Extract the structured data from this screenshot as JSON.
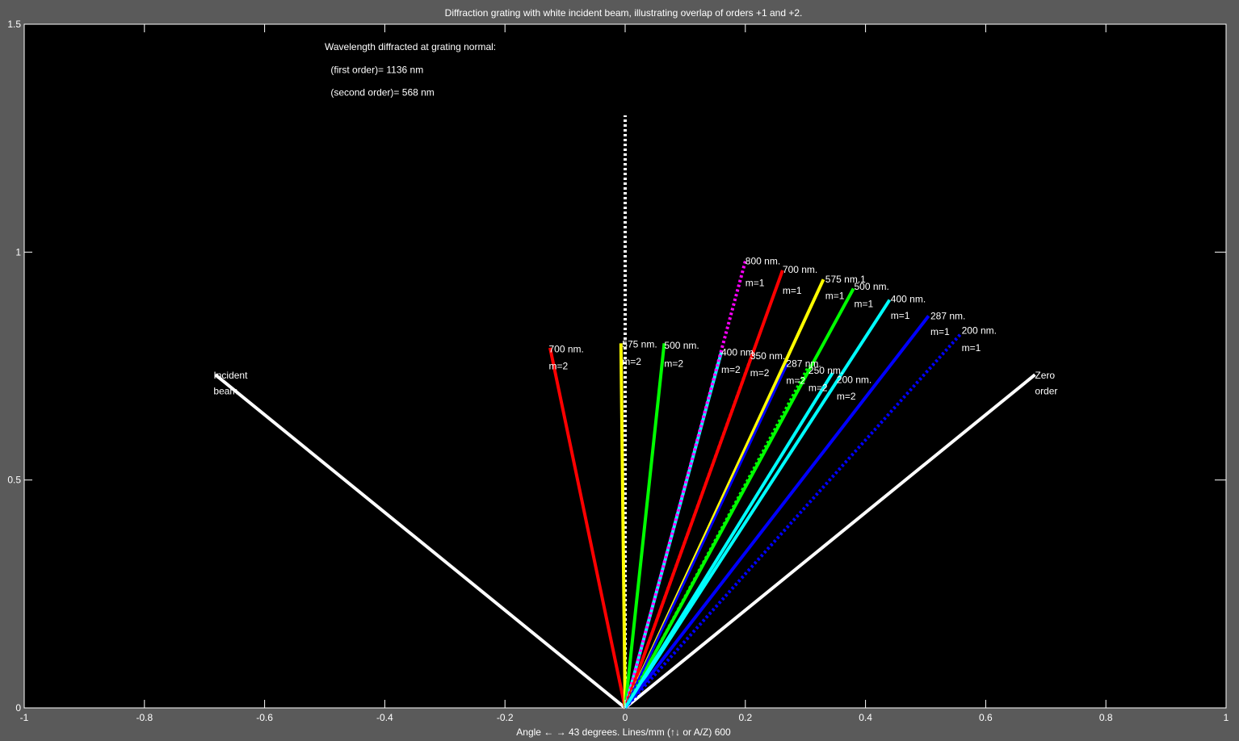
{
  "window": {
    "background": "#5a5a5a",
    "axes_background": "#000000",
    "foreground": "#ffffff"
  },
  "chart_data": {
    "type": "line",
    "title": "Diffraction grating with white incident beam, illustrating overlap of orders +1 and +2.",
    "xlabel": "Angle ← → 43 degrees.   Lines/mm (↑↓ or A/Z) 600",
    "ylabel": "",
    "xlim": [
      -1,
      1
    ],
    "ylim": [
      0,
      1.5
    ],
    "grid": false,
    "xticks": [
      -1,
      -0.8,
      -0.6,
      -0.4,
      -0.2,
      0,
      0.2,
      0.4,
      0.6,
      0.8,
      1
    ],
    "xtick_labels": [
      "-1",
      "-0.8",
      "-0.6",
      "-0.4",
      "-0.2",
      "0",
      "0.2",
      "0.4",
      "0.6",
      "0.8",
      "1"
    ],
    "yticks": [
      0,
      0.5,
      1,
      1.5
    ],
    "ytick_labels": [
      "0",
      "0.5",
      "1",
      "1.5"
    ],
    "info_lines": [
      {
        "text": "Wavelength diffracted at grating normal:",
        "x": -0.5,
        "y": 1.45
      },
      {
        "text": "(first order)= 1136 nm",
        "x": -0.49,
        "y": 1.4
      },
      {
        "text": "(second order)= 568 nm",
        "x": -0.49,
        "y": 1.35
      }
    ],
    "series": [
      {
        "x": [
          0,
          -0.682
        ],
        "y": [
          0,
          0.731
        ],
        "color": "#ffffff",
        "style": "solid",
        "width": 4
      },
      {
        "x": [
          0,
          0.682
        ],
        "y": [
          0,
          0.731
        ],
        "color": "#ffffff",
        "style": "solid",
        "width": 4
      },
      {
        "x": [
          0,
          0
        ],
        "y": [
          0,
          1.3
        ],
        "color": "#ffffff",
        "style": "dotted",
        "width": 4
      },
      {
        "x": [
          0,
          -0.125
        ],
        "y": [
          0,
          0.79
        ],
        "color": "#ff0000",
        "style": "solid",
        "width": 4
      },
      {
        "x": [
          0,
          -0.007
        ],
        "y": [
          0,
          0.8
        ],
        "color": "#ffff00",
        "style": "solid",
        "width": 4
      },
      {
        "x": [
          0,
          0.065
        ],
        "y": [
          0,
          0.8
        ],
        "color": "#00ff00",
        "style": "solid",
        "width": 4
      },
      {
        "x": [
          0,
          0.16
        ],
        "y": [
          0,
          0.78
        ],
        "color": "#00ffff",
        "style": "solid",
        "width": 4
      },
      {
        "x": [
          0,
          0.2
        ],
        "y": [
          0,
          0.98
        ],
        "color": "#ff00ff",
        "style": "dotted",
        "width": 4
      },
      {
        "x": [
          0,
          0.262
        ],
        "y": [
          0,
          0.96
        ],
        "color": "#ff0000",
        "style": "solid",
        "width": 4
      },
      {
        "x": [
          0,
          0.33
        ],
        "y": [
          0,
          0.94
        ],
        "color": "#ffff00",
        "style": "solid",
        "width": 4
      },
      {
        "x": [
          0,
          0.38
        ],
        "y": [
          0,
          0.92
        ],
        "color": "#00ff00",
        "style": "solid",
        "width": 4
      },
      {
        "x": [
          0,
          0.44
        ],
        "y": [
          0,
          0.895
        ],
        "color": "#00ffff",
        "style": "solid",
        "width": 4
      },
      {
        "x": [
          0,
          0.505
        ],
        "y": [
          0,
          0.86
        ],
        "color": "#0000ff",
        "style": "solid",
        "width": 4
      },
      {
        "x": [
          0,
          0.558
        ],
        "y": [
          0,
          0.82
        ],
        "color": "#0000ff",
        "style": "dotted",
        "width": 4
      },
      {
        "x": [
          0,
          0.21
        ],
        "y": [
          0,
          0.77
        ],
        "color": "#ff0000",
        "style": "dotted",
        "width": 4
      },
      {
        "x": [
          0,
          0.27
        ],
        "y": [
          0,
          0.755
        ],
        "color": "#0000ff",
        "style": "solid",
        "width": 3
      },
      {
        "x": [
          0,
          0.305
        ],
        "y": [
          0,
          0.75
        ],
        "color": "#00ff00",
        "style": "dotted",
        "width": 3
      },
      {
        "x": [
          0,
          0.345
        ],
        "y": [
          0,
          0.735
        ],
        "color": "#00ffff",
        "style": "solid",
        "width": 4
      }
    ],
    "annotations": [
      {
        "text": "Incident",
        "x": -0.685,
        "y": 0.73
      },
      {
        "text": "beam",
        "x": -0.685,
        "y": 0.695
      },
      {
        "text": "Zero",
        "x": 0.682,
        "y": 0.73
      },
      {
        "text": "order",
        "x": 0.682,
        "y": 0.695
      },
      {
        "text": "700 nm.",
        "x": -0.127,
        "y": 0.787
      },
      {
        "text": "m=2",
        "x": -0.127,
        "y": 0.75
      },
      {
        "text": "575 nm.",
        "x": -0.005,
        "y": 0.798
      },
      {
        "text": "m=2",
        "x": -0.005,
        "y": 0.76
      },
      {
        "text": "500 nm.",
        "x": 0.065,
        "y": 0.795
      },
      {
        "text": "m=2",
        "x": 0.065,
        "y": 0.755
      },
      {
        "text": "400 nm.",
        "x": 0.16,
        "y": 0.78
      },
      {
        "text": "m=2",
        "x": 0.16,
        "y": 0.742
      },
      {
        "text": "350 nm.",
        "x": 0.208,
        "y": 0.772
      },
      {
        "text": "m=2",
        "x": 0.208,
        "y": 0.735
      },
      {
        "text": "287 nm.",
        "x": 0.268,
        "y": 0.755
      },
      {
        "text": "m=2",
        "x": 0.268,
        "y": 0.718
      },
      {
        "text": "250 nm.",
        "x": 0.305,
        "y": 0.74
      },
      {
        "text": "m=2",
        "x": 0.305,
        "y": 0.702
      },
      {
        "text": "200 nm.",
        "x": 0.352,
        "y": 0.72
      },
      {
        "text": "m=2",
        "x": 0.352,
        "y": 0.684
      },
      {
        "text": "800 nm.",
        "x": 0.2,
        "y": 0.98
      },
      {
        "text": "m=1",
        "x": 0.2,
        "y": 0.932
      },
      {
        "text": "700 nm.",
        "x": 0.262,
        "y": 0.962
      },
      {
        "text": "m=1",
        "x": 0.262,
        "y": 0.916
      },
      {
        "text": "575 nm.1",
        "x": 0.333,
        "y": 0.94
      },
      {
        "text": "m=1",
        "x": 0.333,
        "y": 0.904
      },
      {
        "text": "500 nm.",
        "x": 0.381,
        "y": 0.924
      },
      {
        "text": "m=1",
        "x": 0.381,
        "y": 0.886
      },
      {
        "text": "400 nm.",
        "x": 0.442,
        "y": 0.897
      },
      {
        "text": "m=1",
        "x": 0.442,
        "y": 0.861
      },
      {
        "text": "287 nm.",
        "x": 0.508,
        "y": 0.86
      },
      {
        "text": "m=1",
        "x": 0.508,
        "y": 0.825
      },
      {
        "text": "200 nm.",
        "x": 0.56,
        "y": 0.828
      },
      {
        "text": "m=1",
        "x": 0.56,
        "y": 0.79
      }
    ]
  }
}
